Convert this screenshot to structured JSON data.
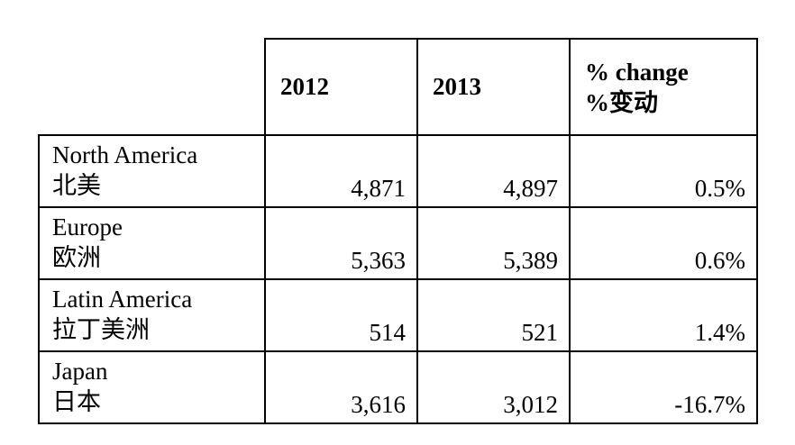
{
  "table": {
    "headers": {
      "col_2012": "2012",
      "col_2013": "2013",
      "change_en": "% change",
      "change_zh": "%变动"
    },
    "rows": [
      {
        "region_en": "North America",
        "region_zh": "北美",
        "v2012": "4,871",
        "v2013": "4,897",
        "change": "0.5%"
      },
      {
        "region_en": "Europe",
        "region_zh": "欧洲",
        "v2012": "5,363",
        "v2013": "5,389",
        "change": "0.6%"
      },
      {
        "region_en": "Latin America",
        "region_zh": "拉丁美洲",
        "v2012": "514",
        "v2013": "521",
        "change": "1.4%"
      },
      {
        "region_en": "Japan",
        "region_zh": "日本",
        "v2012": "3,616",
        "v2013": "3,012",
        "change": "-16.7%"
      }
    ]
  }
}
